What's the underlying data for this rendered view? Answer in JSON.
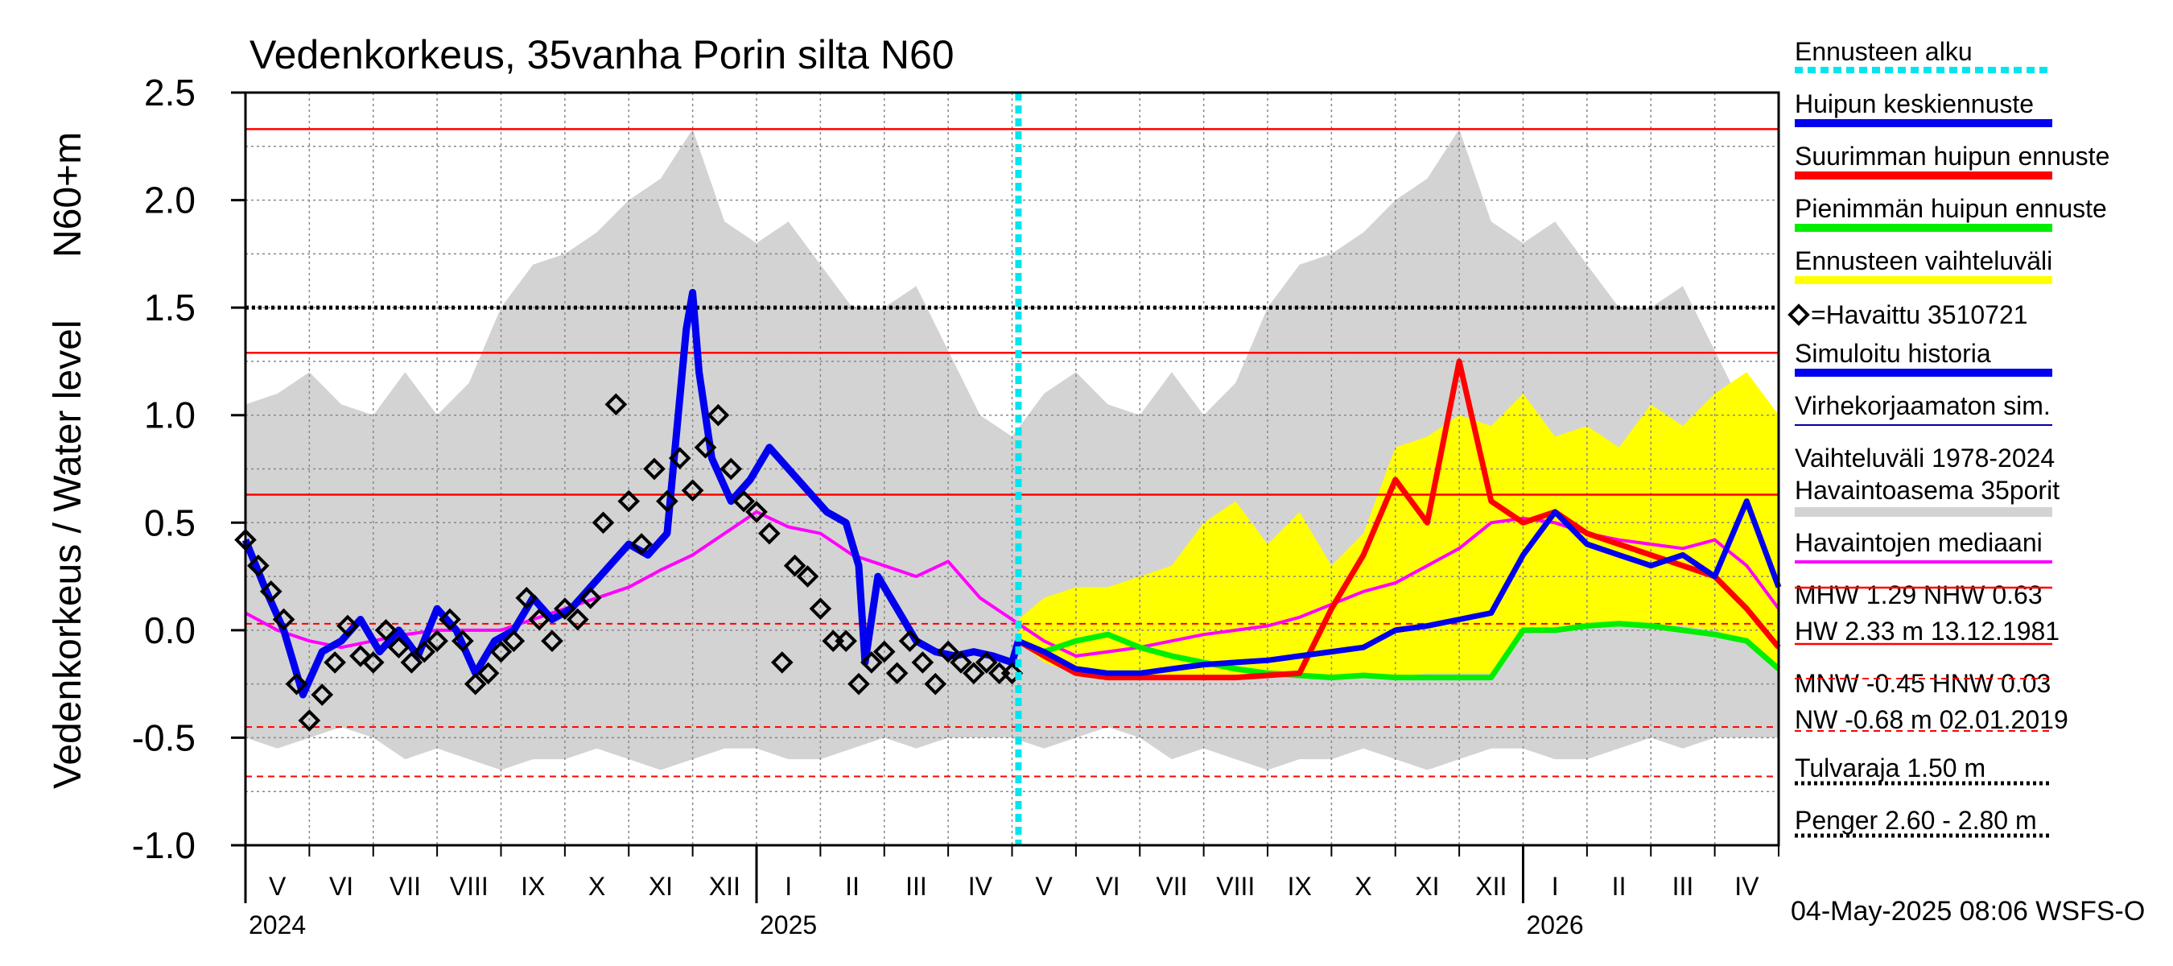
{
  "chart_data": {
    "type": "line",
    "title": "Vedenkorkeus, 35vanha Porin silta N60",
    "ylabel_main": "Vedenkorkeus / Water level",
    "ylabel_unit": "N60+m",
    "ylim": [
      -1.0,
      2.5
    ],
    "yticks": [
      "2.5",
      "2.0",
      "1.5",
      "1.0",
      "0.5",
      "0.0",
      "-0.5",
      "-1.0"
    ],
    "x_range_months": [
      0,
      24
    ],
    "forecast_start_month": 12.1,
    "month_labels": [
      "V",
      "VI",
      "VII",
      "VIII",
      "IX",
      "X",
      "XI",
      "XII",
      "I",
      "II",
      "III",
      "IV",
      "V",
      "VI",
      "VII",
      "VIII",
      "IX",
      "X",
      "XI",
      "XII",
      "I",
      "II",
      "III",
      "IV"
    ],
    "year_labels": [
      {
        "label": "2024",
        "month": 0
      },
      {
        "label": "2025",
        "month": 8
      },
      {
        "label": "2026",
        "month": 20
      }
    ],
    "reference_lines": [
      {
        "name": "HW",
        "value": 2.33
      },
      {
        "name": "MHW",
        "value": 1.29
      },
      {
        "name": "NHW",
        "value": 0.63
      },
      {
        "name": "HNW",
        "value": 0.03
      },
      {
        "name": "MNW",
        "value": -0.45
      },
      {
        "name": "NW",
        "value": -0.68
      },
      {
        "name": "Tulvaraja",
        "value": 1.5
      }
    ],
    "legend": [
      {
        "label": "Ennusteen alku",
        "color": "#00e5ee",
        "style": "dotted"
      },
      {
        "label": "Huipun keskiennuste",
        "color": "#0000ee",
        "style": "solid"
      },
      {
        "label": "Suurimman huipun ennuste",
        "color": "#ff0000",
        "style": "solid"
      },
      {
        "label": "Pienimmän huipun ennuste",
        "color": "#00ee00",
        "style": "solid"
      },
      {
        "label": "Ennusteen vaihteluväli",
        "color": "#ffff00",
        "style": "solid"
      },
      {
        "label": "=Havaittu 3510721",
        "color": "#000000",
        "style": "marker"
      },
      {
        "label": "Simuloitu historia",
        "color": "#0000ee",
        "style": "solid"
      },
      {
        "label": "Virhekorjaamaton sim.",
        "color": "#0000aa",
        "style": "thin"
      },
      {
        "label": "Vaihteluväli 1978-2024",
        "color": "#d3d3d3",
        "style": "none"
      },
      {
        "label": " Havaintoasema 35porit",
        "color": "#d3d3d3",
        "style": "solid"
      },
      {
        "label": "Havaintojen mediaani",
        "color": "#ff00ff",
        "style": "solid"
      }
    ],
    "stats": {
      "row1": "MHW   1.29 NHW   0.63",
      "row2": "HW   2.33 m 13.12.1981",
      "row3": "MNW  -0.45 HNW   0.03",
      "row4": "NW  -0.68 m 02.01.2019",
      "tulvaraja": "Tulvaraja 1.50 m",
      "penger": "Penger 2.60 - 2.80 m"
    },
    "footer": "04-May-2025 08:06 WSFS-O",
    "series": {
      "hist_upper": {
        "name": "Vaihteluväli 1978-2024 (max)",
        "x": [
          0,
          0.5,
          1,
          1.5,
          2,
          2.5,
          3,
          3.5,
          4,
          4.5,
          5,
          5.5,
          6,
          6.5,
          7,
          7.5,
          8,
          8.5,
          9,
          9.5,
          10,
          10.5,
          11,
          11.5,
          12,
          12.5,
          13,
          13.5,
          14,
          14.5,
          15,
          15.5,
          16,
          16.5,
          17,
          17.5,
          18,
          18.5,
          19,
          19.5,
          20,
          20.5,
          21,
          21.5,
          22,
          22.5,
          23,
          23.5,
          24
        ],
        "y": [
          1.05,
          1.1,
          1.2,
          1.05,
          1.0,
          1.2,
          1.0,
          1.15,
          1.5,
          1.7,
          1.75,
          1.85,
          2.0,
          2.1,
          2.33,
          1.9,
          1.8,
          1.9,
          1.7,
          1.5,
          1.5,
          1.6,
          1.3,
          1.0,
          0.9,
          1.1,
          1.2,
          1.05,
          1.0,
          1.2,
          1.0,
          1.15,
          1.5,
          1.7,
          1.75,
          1.85,
          2.0,
          2.1,
          2.33,
          1.9,
          1.8,
          1.9,
          1.7,
          1.5,
          1.5,
          1.6,
          1.3,
          1.0,
          0.95
        ]
      },
      "hist_lower": {
        "name": "Vaihteluväli 1978-2024 (min)",
        "x": [
          0,
          0.5,
          1,
          1.5,
          2,
          2.5,
          3,
          3.5,
          4,
          4.5,
          5,
          5.5,
          6,
          6.5,
          7,
          7.5,
          8,
          8.5,
          9,
          9.5,
          10,
          10.5,
          11,
          11.5,
          12,
          12.5,
          13,
          13.5,
          14,
          14.5,
          15,
          15.5,
          16,
          16.5,
          17,
          17.5,
          18,
          18.5,
          19,
          19.5,
          20,
          20.5,
          21,
          21.5,
          22,
          22.5,
          23,
          23.5,
          24
        ],
        "y": [
          -0.5,
          -0.55,
          -0.5,
          -0.45,
          -0.5,
          -0.6,
          -0.55,
          -0.6,
          -0.65,
          -0.6,
          -0.6,
          -0.55,
          -0.6,
          -0.65,
          -0.6,
          -0.55,
          -0.55,
          -0.6,
          -0.6,
          -0.55,
          -0.5,
          -0.55,
          -0.5,
          -0.5,
          -0.5,
          -0.55,
          -0.5,
          -0.45,
          -0.5,
          -0.6,
          -0.55,
          -0.6,
          -0.65,
          -0.6,
          -0.6,
          -0.55,
          -0.6,
          -0.65,
          -0.6,
          -0.55,
          -0.55,
          -0.6,
          -0.6,
          -0.55,
          -0.5,
          -0.55,
          -0.5,
          -0.5,
          -0.5
        ]
      },
      "forecast_upper": {
        "name": "Ennusteen vaihteluväli (max)",
        "x": [
          12.1,
          12.5,
          13,
          13.5,
          14,
          14.5,
          15,
          15.5,
          16,
          16.5,
          17,
          17.5,
          18,
          18.5,
          19,
          19.5,
          20,
          20.5,
          21,
          21.5,
          22,
          22.5,
          23,
          23.5,
          24
        ],
        "y": [
          0.05,
          0.15,
          0.2,
          0.2,
          0.25,
          0.3,
          0.5,
          0.6,
          0.4,
          0.55,
          0.3,
          0.45,
          0.85,
          0.9,
          1.0,
          0.95,
          1.1,
          0.9,
          0.95,
          0.85,
          1.05,
          0.95,
          1.1,
          1.2,
          1.0
        ]
      },
      "forecast_lower": {
        "name": "Ennusteen vaihteluväli (min)",
        "x": [
          12.1,
          12.5,
          13,
          13.5,
          14,
          14.5,
          15,
          15.5,
          16,
          16.5,
          17,
          17.5,
          18,
          18.5,
          19,
          19.5,
          20,
          20.5,
          21,
          21.5,
          22,
          22.5,
          23,
          23.5,
          24
        ],
        "y": [
          -0.05,
          -0.15,
          -0.2,
          -0.22,
          -0.22,
          -0.22,
          -0.22,
          -0.22,
          -0.22,
          -0.22,
          -0.22,
          -0.22,
          -0.22,
          -0.2,
          -0.2,
          -0.2,
          0.0,
          0.0,
          0.02,
          0.02,
          0.02,
          0.02,
          0.0,
          -0.05,
          -0.18
        ]
      },
      "observed": {
        "name": "=Havaittu 3510721",
        "x": [
          0,
          0.2,
          0.4,
          0.6,
          0.8,
          1.0,
          1.2,
          1.4,
          1.6,
          1.8,
          2.0,
          2.2,
          2.4,
          2.6,
          2.8,
          3.0,
          3.2,
          3.4,
          3.6,
          3.8,
          4.0,
          4.2,
          4.4,
          4.6,
          4.8,
          5.0,
          5.2,
          5.4,
          5.6,
          5.8,
          6.0,
          6.2,
          6.4,
          6.6,
          6.8,
          7.0,
          7.2,
          7.4,
          7.6,
          7.8,
          8.0,
          8.2,
          8.4,
          8.6,
          8.8,
          9.0,
          9.2,
          9.4,
          9.6,
          9.8,
          10.0,
          10.2,
          10.4,
          10.6,
          10.8,
          11.0,
          11.2,
          11.4,
          11.6,
          11.8,
          12.0
        ],
        "y": [
          0.42,
          0.3,
          0.18,
          0.05,
          -0.25,
          -0.42,
          -0.3,
          -0.15,
          0.02,
          -0.12,
          -0.15,
          0.0,
          -0.08,
          -0.15,
          -0.1,
          -0.05,
          0.05,
          -0.05,
          -0.25,
          -0.2,
          -0.1,
          -0.05,
          0.15,
          0.05,
          -0.05,
          0.1,
          0.05,
          0.15,
          0.5,
          1.05,
          0.6,
          0.4,
          0.75,
          0.6,
          0.8,
          0.65,
          0.85,
          1.0,
          0.75,
          0.6,
          0.55,
          0.45,
          -0.15,
          0.3,
          0.25,
          0.1,
          -0.05,
          -0.05,
          -0.25,
          -0.15,
          -0.1,
          -0.2,
          -0.05,
          -0.15,
          -0.25,
          -0.1,
          -0.15,
          -0.2,
          -0.15,
          -0.2,
          -0.2
        ]
      },
      "simulated_history": {
        "name": "Simuloitu historia",
        "x": [
          0,
          0.3,
          0.6,
          0.9,
          1.2,
          1.5,
          1.8,
          2.1,
          2.4,
          2.7,
          3.0,
          3.3,
          3.6,
          3.9,
          4.2,
          4.5,
          4.8,
          5.1,
          5.4,
          5.7,
          6.0,
          6.3,
          6.6,
          6.9,
          7.0,
          7.1,
          7.3,
          7.6,
          7.9,
          8.2,
          8.5,
          8.8,
          9.1,
          9.4,
          9.6,
          9.7,
          9.9,
          10.2,
          10.5,
          10.8,
          11.1,
          11.4,
          11.7,
          12.0,
          12.1
        ],
        "y": [
          0.42,
          0.2,
          0.0,
          -0.3,
          -0.1,
          -0.05,
          0.05,
          -0.1,
          0.0,
          -0.12,
          0.1,
          0.0,
          -0.2,
          -0.05,
          0.0,
          0.15,
          0.05,
          0.1,
          0.2,
          0.3,
          0.4,
          0.35,
          0.45,
          1.4,
          1.57,
          1.2,
          0.8,
          0.6,
          0.7,
          0.85,
          0.75,
          0.65,
          0.55,
          0.5,
          0.3,
          -0.15,
          0.25,
          0.1,
          -0.05,
          -0.1,
          -0.12,
          -0.1,
          -0.12,
          -0.15,
          -0.05
        ]
      },
      "mean_forecast": {
        "name": "Huipun keskiennuste",
        "x": [
          12.1,
          12.5,
          13,
          13.5,
          14,
          14.5,
          15,
          15.5,
          16,
          16.5,
          17,
          17.5,
          18,
          18.5,
          19,
          19.5,
          20,
          20.5,
          21,
          21.5,
          22,
          22.5,
          23,
          23.5,
          24
        ],
        "y": [
          -0.05,
          -0.1,
          -0.18,
          -0.2,
          -0.2,
          -0.18,
          -0.16,
          -0.15,
          -0.14,
          -0.12,
          -0.1,
          -0.08,
          0.0,
          0.02,
          0.05,
          0.08,
          0.35,
          0.55,
          0.4,
          0.35,
          0.3,
          0.35,
          0.25,
          0.6,
          0.2
        ]
      },
      "max_forecast": {
        "name": "Suurimman huipun ennuste",
        "x": [
          12.1,
          12.5,
          13,
          13.5,
          14,
          14.5,
          15,
          15.5,
          16,
          16.5,
          17,
          17.5,
          18,
          18.5,
          19,
          19.5,
          20,
          20.5,
          21,
          21.5,
          22,
          22.5,
          23,
          23.5,
          24
        ],
        "y": [
          -0.05,
          -0.12,
          -0.2,
          -0.22,
          -0.22,
          -0.22,
          -0.22,
          -0.22,
          -0.21,
          -0.2,
          0.1,
          0.35,
          0.7,
          0.5,
          1.25,
          0.6,
          0.5,
          0.55,
          0.45,
          0.4,
          0.35,
          0.3,
          0.25,
          0.1,
          -0.08
        ]
      },
      "min_forecast": {
        "name": "Pienimmän huipun ennuste",
        "x": [
          12.1,
          12.5,
          13,
          13.5,
          14,
          14.5,
          15,
          15.5,
          16,
          16.5,
          17,
          17.5,
          18,
          18.5,
          19,
          19.5,
          20,
          20.5,
          21,
          21.5,
          22,
          22.5,
          23,
          23.5,
          24
        ],
        "y": [
          -0.05,
          -0.1,
          -0.05,
          -0.02,
          -0.08,
          -0.12,
          -0.15,
          -0.18,
          -0.2,
          -0.21,
          -0.22,
          -0.21,
          -0.22,
          -0.22,
          -0.22,
          -0.22,
          0.0,
          0.0,
          0.02,
          0.03,
          0.02,
          0.0,
          -0.02,
          -0.05,
          -0.18
        ]
      },
      "median": {
        "name": "Havaintojen mediaani",
        "x": [
          0,
          0.5,
          1,
          1.5,
          2,
          2.5,
          3,
          3.5,
          4,
          4.5,
          5,
          5.5,
          6,
          6.5,
          7,
          7.5,
          8,
          8.5,
          9,
          9.5,
          10,
          10.5,
          11,
          11.5,
          12,
          12.5,
          13,
          13.5,
          14,
          14.5,
          15,
          15.5,
          16,
          16.5,
          17,
          17.5,
          18,
          18.5,
          19,
          19.5,
          20,
          20.5,
          21,
          21.5,
          22,
          22.5,
          23,
          23.5,
          24
        ],
        "y": [
          0.08,
          0.0,
          -0.05,
          -0.08,
          -0.05,
          -0.02,
          0.0,
          0.0,
          0.0,
          0.05,
          0.1,
          0.15,
          0.2,
          0.28,
          0.35,
          0.45,
          0.55,
          0.48,
          0.45,
          0.35,
          0.3,
          0.25,
          0.32,
          0.15,
          0.05,
          -0.05,
          -0.12,
          -0.1,
          -0.08,
          -0.05,
          -0.02,
          0.0,
          0.02,
          0.06,
          0.12,
          0.18,
          0.22,
          0.3,
          0.38,
          0.5,
          0.52,
          0.5,
          0.45,
          0.42,
          0.4,
          0.38,
          0.42,
          0.3,
          0.1
        ]
      }
    }
  }
}
